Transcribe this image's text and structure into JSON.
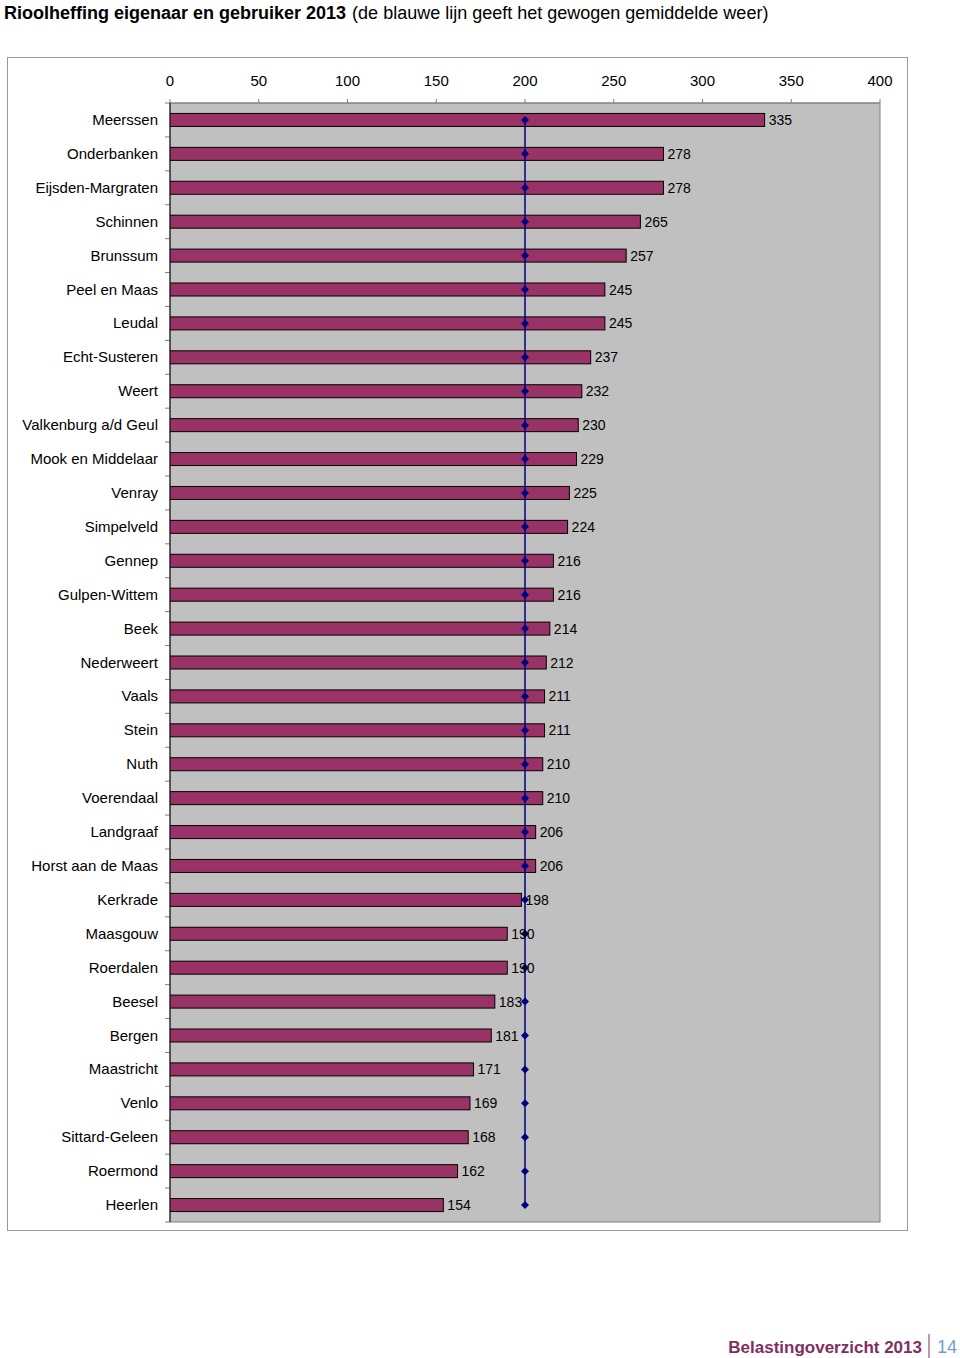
{
  "chart_data": {
    "type": "bar",
    "orientation": "horizontal",
    "title": "Rioolheffing eigenaar en gebruiker 2013",
    "subtitle": "(de blauwe lijn geeft het gewogen gemiddelde weer)",
    "categories": [
      "Meerssen",
      "Onderbanken",
      "Eijsden-Margraten",
      "Schinnen",
      "Brunssum",
      "Peel en Maas",
      "Leudal",
      "Echt-Susteren",
      "Weert",
      "Valkenburg a/d Geul",
      "Mook en Middelaar",
      "Venray",
      "Simpelveld",
      "Gennep",
      "Gulpen-Wittem",
      "Beek",
      "Nederweert",
      "Vaals",
      "Stein",
      "Nuth",
      "Voerendaal",
      "Landgraaf",
      "Horst aan de Maas",
      "Kerkrade",
      "Maasgouw",
      "Roerdalen",
      "Beesel",
      "Bergen",
      "Maastricht",
      "Venlo",
      "Sittard-Geleen",
      "Roermond",
      "Heerlen"
    ],
    "series": [
      {
        "type": "bar",
        "color": "#993366",
        "data_labels": true,
        "values": [
          335,
          278,
          278,
          265,
          257,
          245,
          245,
          237,
          232,
          230,
          229,
          225,
          224,
          216,
          216,
          214,
          212,
          211,
          211,
          210,
          210,
          206,
          206,
          198,
          190,
          190,
          183,
          181,
          171,
          169,
          168,
          162,
          154
        ]
      },
      {
        "type": "line",
        "color": "#000080",
        "marker": "diamond",
        "values": [
          200,
          200,
          200,
          200,
          200,
          200,
          200,
          200,
          200,
          200,
          200,
          200,
          200,
          200,
          200,
          200,
          200,
          200,
          200,
          200,
          200,
          200,
          200,
          200,
          200,
          200,
          200,
          200,
          200,
          200,
          200,
          200,
          200
        ]
      }
    ],
    "xlim": [
      0,
      400
    ],
    "xticks": [
      0,
      50,
      100,
      150,
      200,
      250,
      300,
      350,
      400
    ],
    "grid": false
  },
  "page": {
    "footer": "Belastingoverzicht 2013",
    "page_number": 14
  }
}
